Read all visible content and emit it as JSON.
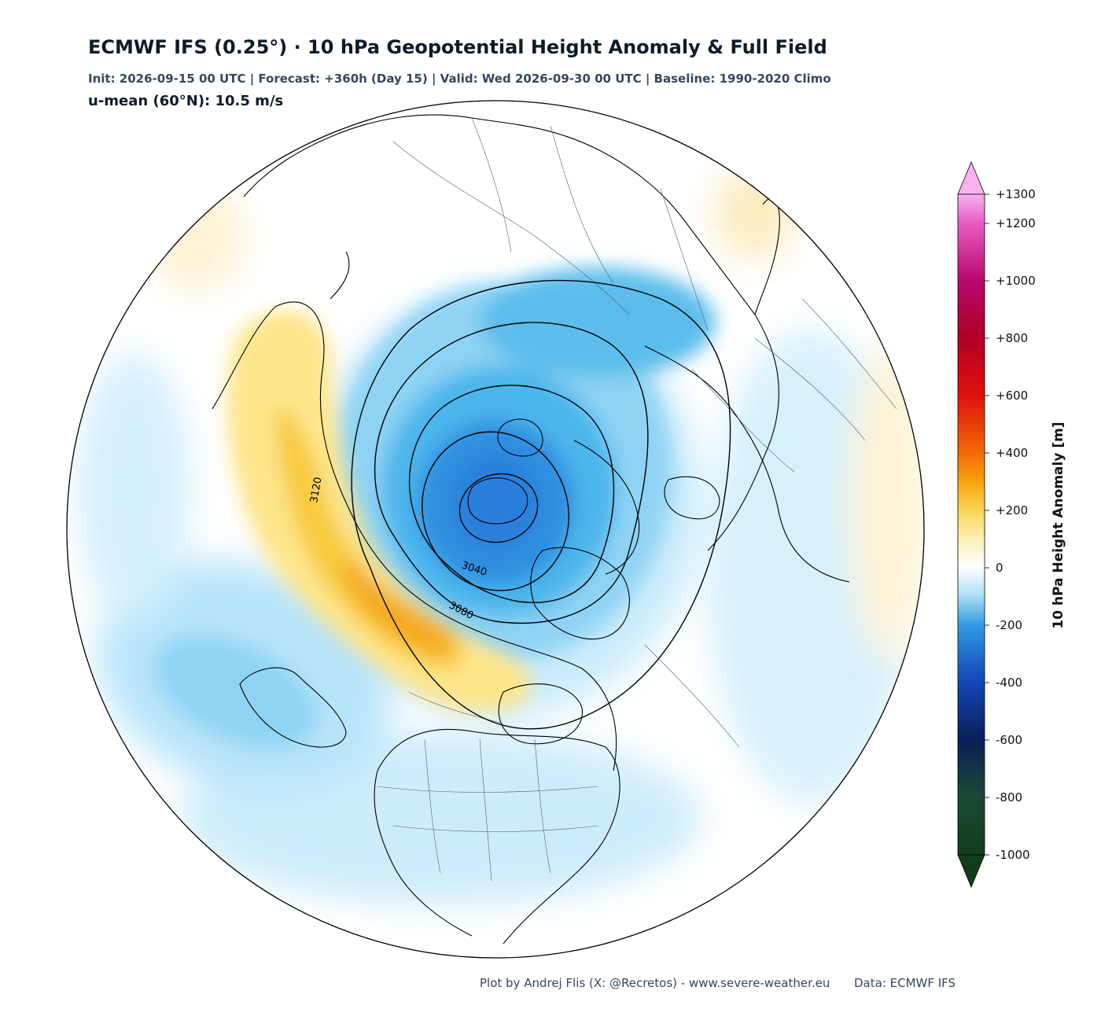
{
  "header": {
    "title": "ECMWF IFS (0.25°)  ·  10 hPa Geopotential Height Anomaly & Full Field",
    "subtitle": "Init: 2026-09-15 00 UTC  |  Forecast: +360h (Day 15)  |  Valid: Wed 2026-09-30 00 UTC  |  Baseline: 1990-2020 Climo",
    "umean": "u-mean (60°N): 10.5 m/s"
  },
  "map": {
    "projection": "north-polar-stereographic",
    "anomaly_field": "10 hPa geopotential height anomaly",
    "contour_field": "10 hPa geopotential height",
    "contour_labels": [
      "3120",
      "3040",
      "3080"
    ]
  },
  "colorbar": {
    "title": "10 hPa Height Anomaly [m]",
    "min": -1000,
    "max": 1300,
    "extend": "both",
    "tick_labels": [
      "+1300",
      "+1200",
      "+1000",
      "+800",
      "+600",
      "+400",
      "+200",
      "0",
      "-200",
      "-400",
      "-600",
      "-800",
      "-1000"
    ],
    "colors": {
      "neg_1000": "#123d1a",
      "neg_800": "#1a4a35",
      "neg_600": "#0b1f57",
      "neg_400": "#1246b8",
      "neg_200": "#2f9be2",
      "zero": "#ffffff",
      "pos_200": "#f8d452",
      "pos_400": "#f36a06",
      "pos_600": "#e0100b",
      "pos_800": "#b00025",
      "pos_1000": "#b8086e",
      "pos_1200": "#ea5cc4",
      "pos_1300": "#f9b2ef"
    }
  },
  "footer": {
    "credit": "Plot by Andrej Flis (X: @Recretos) - www.severe-weather.eu",
    "data_source": "Data: ECMWF IFS"
  }
}
